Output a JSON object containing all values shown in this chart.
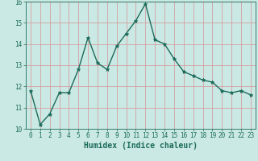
{
  "x": [
    0,
    1,
    2,
    3,
    4,
    5,
    6,
    7,
    8,
    9,
    10,
    11,
    12,
    13,
    14,
    15,
    16,
    17,
    18,
    19,
    20,
    21,
    22,
    23
  ],
  "y": [
    11.8,
    10.2,
    10.7,
    11.7,
    11.7,
    12.8,
    14.3,
    13.1,
    12.8,
    13.9,
    14.5,
    15.1,
    15.9,
    14.2,
    14.0,
    13.3,
    12.7,
    12.5,
    12.3,
    12.2,
    11.8,
    11.7,
    11.8,
    11.6
  ],
  "xlabel": "Humidex (Indice chaleur)",
  "ylim": [
    10,
    16
  ],
  "xlim_min": -0.5,
  "xlim_max": 23.5,
  "yticks": [
    10,
    11,
    12,
    13,
    14,
    15,
    16
  ],
  "xticks": [
    0,
    1,
    2,
    3,
    4,
    5,
    6,
    7,
    8,
    9,
    10,
    11,
    12,
    13,
    14,
    15,
    16,
    17,
    18,
    19,
    20,
    21,
    22,
    23
  ],
  "line_color": "#1a6b5a",
  "marker": "*",
  "bg_color": "#cbe9e4",
  "grid_color": "#d4a0a0",
  "axis_color": "#1a6b5a",
  "label_color": "#1a6b5a",
  "tick_label_size": 5.5,
  "xlabel_size": 7.0
}
